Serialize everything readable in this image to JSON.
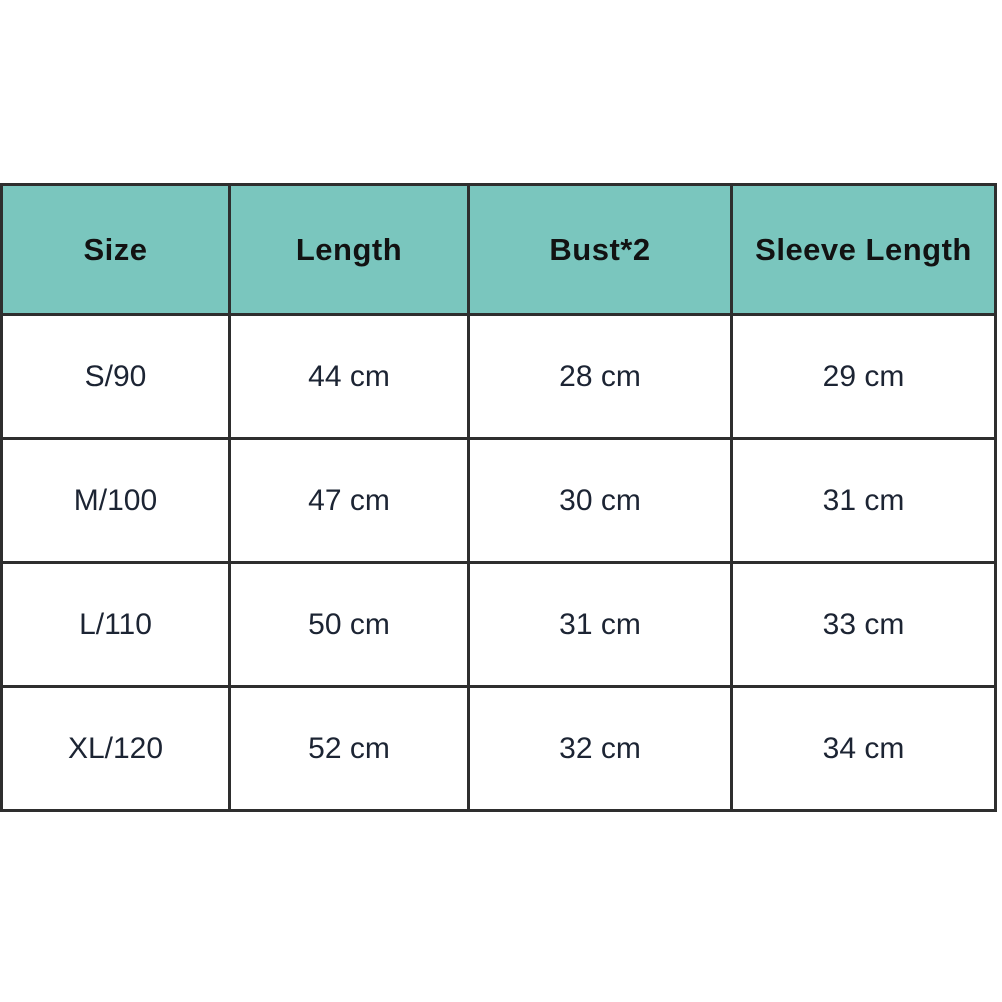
{
  "chart_data": {
    "type": "table",
    "columns": [
      "Size",
      "Length",
      "Bust*2",
      "Sleeve Length"
    ],
    "rows": [
      [
        "S/90",
        "44 cm",
        "28 cm",
        "29 cm"
      ],
      [
        "M/100",
        "47 cm",
        "30 cm",
        "31 cm"
      ],
      [
        "L/110",
        "50 cm",
        "31 cm",
        "33 cm"
      ],
      [
        "XL/120",
        "52 cm",
        "32 cm",
        "34 cm"
      ]
    ]
  },
  "colors": {
    "header_bg": "#7ac6be",
    "grid_border": "#2e2e2e",
    "header_text": "#121212",
    "body_text": "#1c2433",
    "background": "#ffffff"
  }
}
